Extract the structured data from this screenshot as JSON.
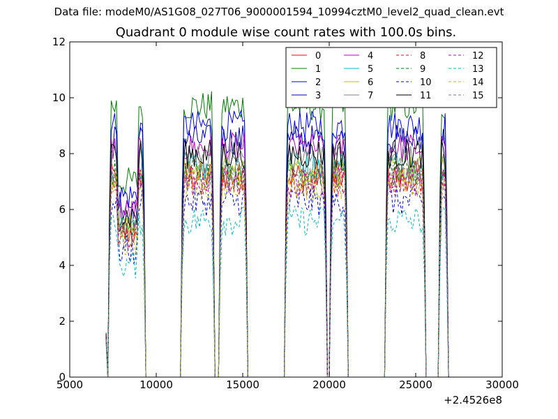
{
  "figure": {
    "suptitle": "Data file: modeM0/AS1G08_027T06_9000001594_10994cztM0_level2_quad_clean.evt"
  },
  "chart_data": {
    "type": "line",
    "title": "Quadrant 0 module wise count rates with 100.0s bins.",
    "xlabel": "",
    "ylabel": "",
    "xlim": [
      5000,
      30000
    ],
    "ylim": [
      0,
      12
    ],
    "x_offset_label": "+2.4526e8",
    "x_ticks": [
      5000,
      10000,
      15000,
      20000,
      25000,
      30000
    ],
    "y_ticks": [
      0,
      2,
      4,
      6,
      8,
      10,
      12
    ],
    "grid": false,
    "legend_placement": "top-right",
    "legend_columns": 4,
    "active_intervals": [
      [
        7200,
        9400
      ],
      [
        11400,
        13400
      ],
      [
        13600,
        15300
      ],
      [
        17400,
        19900
      ],
      [
        20000,
        21100
      ],
      [
        23200,
        25600
      ],
      [
        26300,
        26900
      ]
    ],
    "series": [
      {
        "name": "0",
        "color": "#ff0000",
        "style": "solid",
        "level": 7.2
      },
      {
        "name": "1",
        "color": "#008000",
        "style": "solid",
        "level": 9.7
      },
      {
        "name": "2",
        "color": "#0000ff",
        "style": "solid",
        "level": 9.0
      },
      {
        "name": "3",
        "color": "#0000bf",
        "style": "solid",
        "level": 8.5
      },
      {
        "name": "4",
        "color": "#bf00bf",
        "style": "solid",
        "level": 8.2
      },
      {
        "name": "5",
        "color": "#00bfbf",
        "style": "solid",
        "level": 7.6
      },
      {
        "name": "6",
        "color": "#bfbf00",
        "style": "solid",
        "level": 7.4
      },
      {
        "name": "7",
        "color": "#808080",
        "style": "solid",
        "level": 7.8
      },
      {
        "name": "8",
        "color": "#ff0000",
        "style": "dashed",
        "level": 7.0
      },
      {
        "name": "9",
        "color": "#008000",
        "style": "dashed",
        "level": 7.3
      },
      {
        "name": "10",
        "color": "#0000ff",
        "style": "dashed",
        "level": 6.3
      },
      {
        "name": "11",
        "color": "#000000",
        "style": "solid",
        "level": 8.0
      },
      {
        "name": "12",
        "color": "#bf00bf",
        "style": "dashed",
        "level": 7.0
      },
      {
        "name": "13",
        "color": "#00bfbf",
        "style": "dashed",
        "level": 5.6
      },
      {
        "name": "14",
        "color": "#bfbf00",
        "style": "dashed",
        "level": 6.8
      },
      {
        "name": "15",
        "color": "#808080",
        "style": "dashed",
        "level": 7.2
      }
    ]
  }
}
